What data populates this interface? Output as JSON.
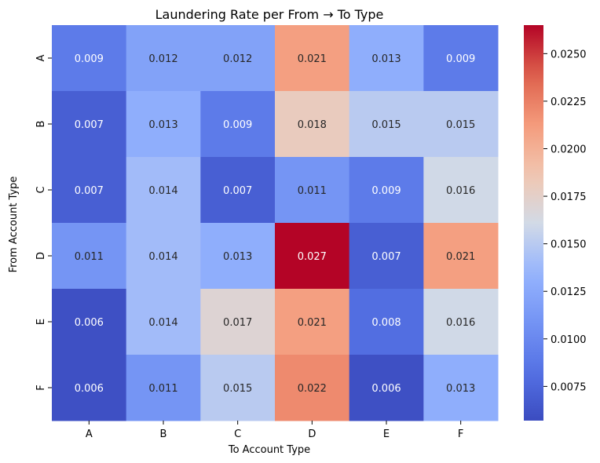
{
  "chart_data": {
    "type": "heatmap",
    "title": "Laundering Rate per From → To Type",
    "xlabel": "To Account Type",
    "ylabel": "From Account Type",
    "x_categories": [
      "A",
      "B",
      "C",
      "D",
      "E",
      "F"
    ],
    "y_categories": [
      "A",
      "B",
      "C",
      "D",
      "E",
      "F"
    ],
    "values": [
      [
        0.009,
        0.012,
        0.012,
        0.021,
        0.013,
        0.009
      ],
      [
        0.007,
        0.013,
        0.009,
        0.018,
        0.015,
        0.015
      ],
      [
        0.007,
        0.014,
        0.007,
        0.011,
        0.009,
        0.016
      ],
      [
        0.011,
        0.014,
        0.013,
        0.027,
        0.007,
        0.021
      ],
      [
        0.006,
        0.014,
        0.017,
        0.021,
        0.008,
        0.016
      ],
      [
        0.006,
        0.011,
        0.015,
        0.022,
        0.006,
        0.013
      ]
    ],
    "cell_labels": [
      [
        "0.009",
        "0.012",
        "0.012",
        "0.021",
        "0.013",
        "0.009"
      ],
      [
        "0.007",
        "0.013",
        "0.009",
        "0.018",
        "0.015",
        "0.015"
      ],
      [
        "0.007",
        "0.014",
        "0.007",
        "0.011",
        "0.009",
        "0.016"
      ],
      [
        "0.011",
        "0.014",
        "0.013",
        "0.027",
        "0.007",
        "0.021"
      ],
      [
        "0.006",
        "0.014",
        "0.017",
        "0.021",
        "0.008",
        "0.016"
      ],
      [
        "0.006",
        "0.011",
        "0.015",
        "0.022",
        "0.006",
        "0.013"
      ]
    ],
    "colormap": "coolwarm",
    "colorbar": {
      "range": [
        0.0057,
        0.0265
      ],
      "ticks": [
        0.0075,
        0.01,
        0.0125,
        0.015,
        0.0175,
        0.02,
        0.0225,
        0.025
      ],
      "tick_labels": [
        "0.0075",
        "0.0100",
        "0.0125",
        "0.0150",
        "0.0175",
        "0.0200",
        "0.0225",
        "0.0250"
      ]
    },
    "grid": false,
    "legend": "colorbar-right"
  }
}
